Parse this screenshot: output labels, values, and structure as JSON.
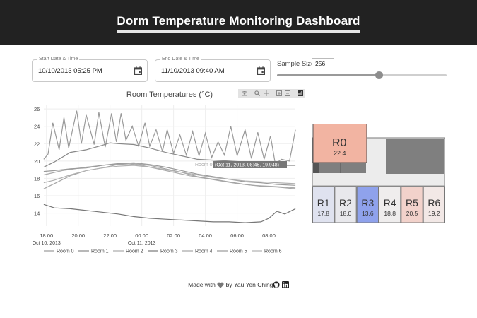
{
  "header": {
    "title": "Dorm Temperature Monitoring Dashboard"
  },
  "controls": {
    "start": {
      "label": "Start Date & Time",
      "value": "10/10/2013 05:25 PM"
    },
    "end": {
      "label": "End Date & Time",
      "value": "11/10/2013 09:40 AM"
    },
    "sample": {
      "label": "Sample Size",
      "value": "256",
      "slider_fraction": 0.6
    }
  },
  "chart": {
    "title": "Room Temperatures (°C)",
    "hover": {
      "series": "Room 0",
      "text": "(Oct 11, 2013, 08:45, 19.948)"
    }
  },
  "chart_data": {
    "type": "line",
    "title": "Room Temperatures (°C)",
    "xlabel": "",
    "ylabel": "",
    "x_range": [
      17.833,
      33.667
    ],
    "ylim": [
      12.5,
      26.5
    ],
    "x_ticks": [
      {
        "v": 18,
        "t": "18:00",
        "sub": "Oct 10, 2013"
      },
      {
        "v": 20,
        "t": "20:00",
        "sub": ""
      },
      {
        "v": 22,
        "t": "22:00",
        "sub": ""
      },
      {
        "v": 24,
        "t": "00:00",
        "sub": "Oct 11, 2013"
      },
      {
        "v": 26,
        "t": "02:00",
        "sub": ""
      },
      {
        "v": 28,
        "t": "04:00",
        "sub": ""
      },
      {
        "v": 30,
        "t": "06:00",
        "sub": ""
      },
      {
        "v": 32,
        "t": "08:00",
        "sub": ""
      }
    ],
    "y_ticks": [
      14,
      16,
      18,
      20,
      22,
      24,
      26
    ],
    "series": [
      {
        "name": "Room 0",
        "x": [
          17.83,
          18.1,
          18.4,
          18.8,
          19.1,
          19.4,
          19.9,
          20.2,
          20.5,
          21.0,
          21.3,
          21.7,
          22.1,
          22.4,
          22.7,
          23.0,
          23.4,
          23.8,
          24.2,
          24.5,
          24.9,
          25.3,
          25.6,
          26.0,
          26.4,
          26.8,
          27.2,
          27.6,
          28.0,
          28.4,
          28.8,
          29.2,
          29.6,
          30.0,
          30.5,
          30.9,
          31.3,
          31.7,
          32.1,
          32.4,
          32.8,
          33.3,
          33.67
        ],
        "y": [
          20.2,
          20.8,
          24.4,
          21.3,
          25.0,
          21.5,
          25.8,
          22.0,
          25.3,
          21.9,
          25.6,
          21.6,
          25.5,
          22.2,
          25.5,
          22.4,
          24.0,
          21.7,
          24.4,
          21.7,
          23.6,
          21.1,
          23.6,
          20.9,
          23.0,
          20.7,
          23.4,
          20.6,
          23.2,
          20.4,
          22.2,
          20.7,
          24.0,
          20.6,
          23.6,
          20.3,
          23.3,
          20.2,
          22.9,
          19.7,
          20.2,
          20.0,
          23.6
        ]
      },
      {
        "name": "Room 1",
        "x": [
          17.83,
          18.5,
          19.5,
          20.5,
          21.5,
          22.0,
          22.5,
          23.5,
          24.5,
          25.5,
          26.5,
          27.5,
          28.5,
          29.5,
          30.5,
          31.5,
          32.5,
          33.0,
          33.67
        ],
        "y": [
          19.3,
          19.9,
          21.0,
          21.3,
          21.8,
          22.1,
          22.0,
          21.9,
          21.5,
          21.0,
          20.6,
          20.2,
          20.1,
          20.0,
          19.9,
          19.8,
          19.6,
          19.5,
          19.5
        ]
      },
      {
        "name": "Room 2",
        "x": [
          17.83,
          19.0,
          20.5,
          22.0,
          23.0,
          24.0,
          25.0,
          26.0,
          27.0,
          28.0,
          29.0,
          30.0,
          31.0,
          32.0,
          33.0,
          33.67
        ],
        "y": [
          18.4,
          18.9,
          19.3,
          19.6,
          19.7,
          19.5,
          19.1,
          18.7,
          18.3,
          18.0,
          17.7,
          17.4,
          17.2,
          17.1,
          17.0,
          16.9
        ]
      },
      {
        "name": "Room 3",
        "x": [
          17.83,
          18.5,
          19.5,
          20.5,
          21.5,
          22.5,
          23.5,
          24.5,
          25.5,
          26.5,
          27.5,
          28.5,
          29.5,
          30.5,
          31.5,
          32.0,
          32.5,
          33.0,
          33.67
        ],
        "y": [
          15.0,
          14.6,
          14.5,
          14.3,
          14.1,
          13.9,
          13.6,
          13.4,
          13.3,
          13.2,
          13.1,
          13.0,
          13.0,
          12.9,
          13.0,
          13.4,
          14.2,
          13.9,
          14.5
        ]
      },
      {
        "name": "Room 4",
        "x": [
          17.83,
          18.5,
          19.5,
          20.5,
          21.5,
          22.5,
          23.5,
          24.5,
          25.5,
          26.5,
          27.5,
          28.5,
          29.5,
          30.5,
          31.5,
          32.5,
          33.67
        ],
        "y": [
          16.8,
          17.4,
          18.3,
          18.9,
          19.2,
          19.6,
          19.7,
          19.5,
          19.1,
          18.7,
          18.2,
          17.9,
          17.6,
          17.3,
          17.1,
          17.0,
          16.8
        ]
      },
      {
        "name": "Room 5",
        "x": [
          17.83,
          18.5,
          19.5,
          20.5,
          21.5,
          22.5,
          23.5,
          24.5,
          25.5,
          26.5,
          27.5,
          28.5,
          29.5,
          30.5,
          31.5,
          32.5,
          33.67
        ],
        "y": [
          18.8,
          18.9,
          19.1,
          19.2,
          19.5,
          19.7,
          19.8,
          19.6,
          19.3,
          18.9,
          18.5,
          18.2,
          17.9,
          17.6,
          17.5,
          17.3,
          17.2
        ]
      },
      {
        "name": "Room 6",
        "x": [
          17.83,
          18.5,
          19.5,
          20.5,
          21.5,
          22.5,
          23.5,
          24.5,
          25.5,
          26.5,
          27.5,
          28.5,
          29.5,
          30.5,
          31.5,
          32.5,
          33.67
        ],
        "y": [
          17.5,
          17.8,
          18.4,
          18.9,
          19.2,
          19.4,
          19.5,
          19.3,
          19.0,
          18.7,
          18.4,
          18.1,
          17.9,
          17.7,
          17.6,
          17.5,
          17.4
        ]
      }
    ],
    "legend": [
      "Room 0",
      "Room 1",
      "Room 2",
      "Room 3",
      "Room 4",
      "Room 5",
      "Room 6"
    ],
    "legend_position": "bottom"
  },
  "floorplan": {
    "top": {
      "name": "R0",
      "value": "22.4",
      "color": "#f2b4a2"
    },
    "rooms": [
      {
        "name": "R1",
        "value": "17.8",
        "color": "#dfe2ef"
      },
      {
        "name": "R2",
        "value": "18.0",
        "color": "#e8e8ec"
      },
      {
        "name": "R3",
        "value": "13.6",
        "color": "#8fa2ec"
      },
      {
        "name": "R4",
        "value": "18.8",
        "color": "#efeded"
      },
      {
        "name": "R5",
        "value": "20.5",
        "color": "#f2d2cb"
      },
      {
        "name": "R6",
        "value": "19.2",
        "color": "#f2e8e6"
      }
    ]
  },
  "footer": {
    "made_with": "Made with",
    "by": "by Yau Yen Ching"
  }
}
